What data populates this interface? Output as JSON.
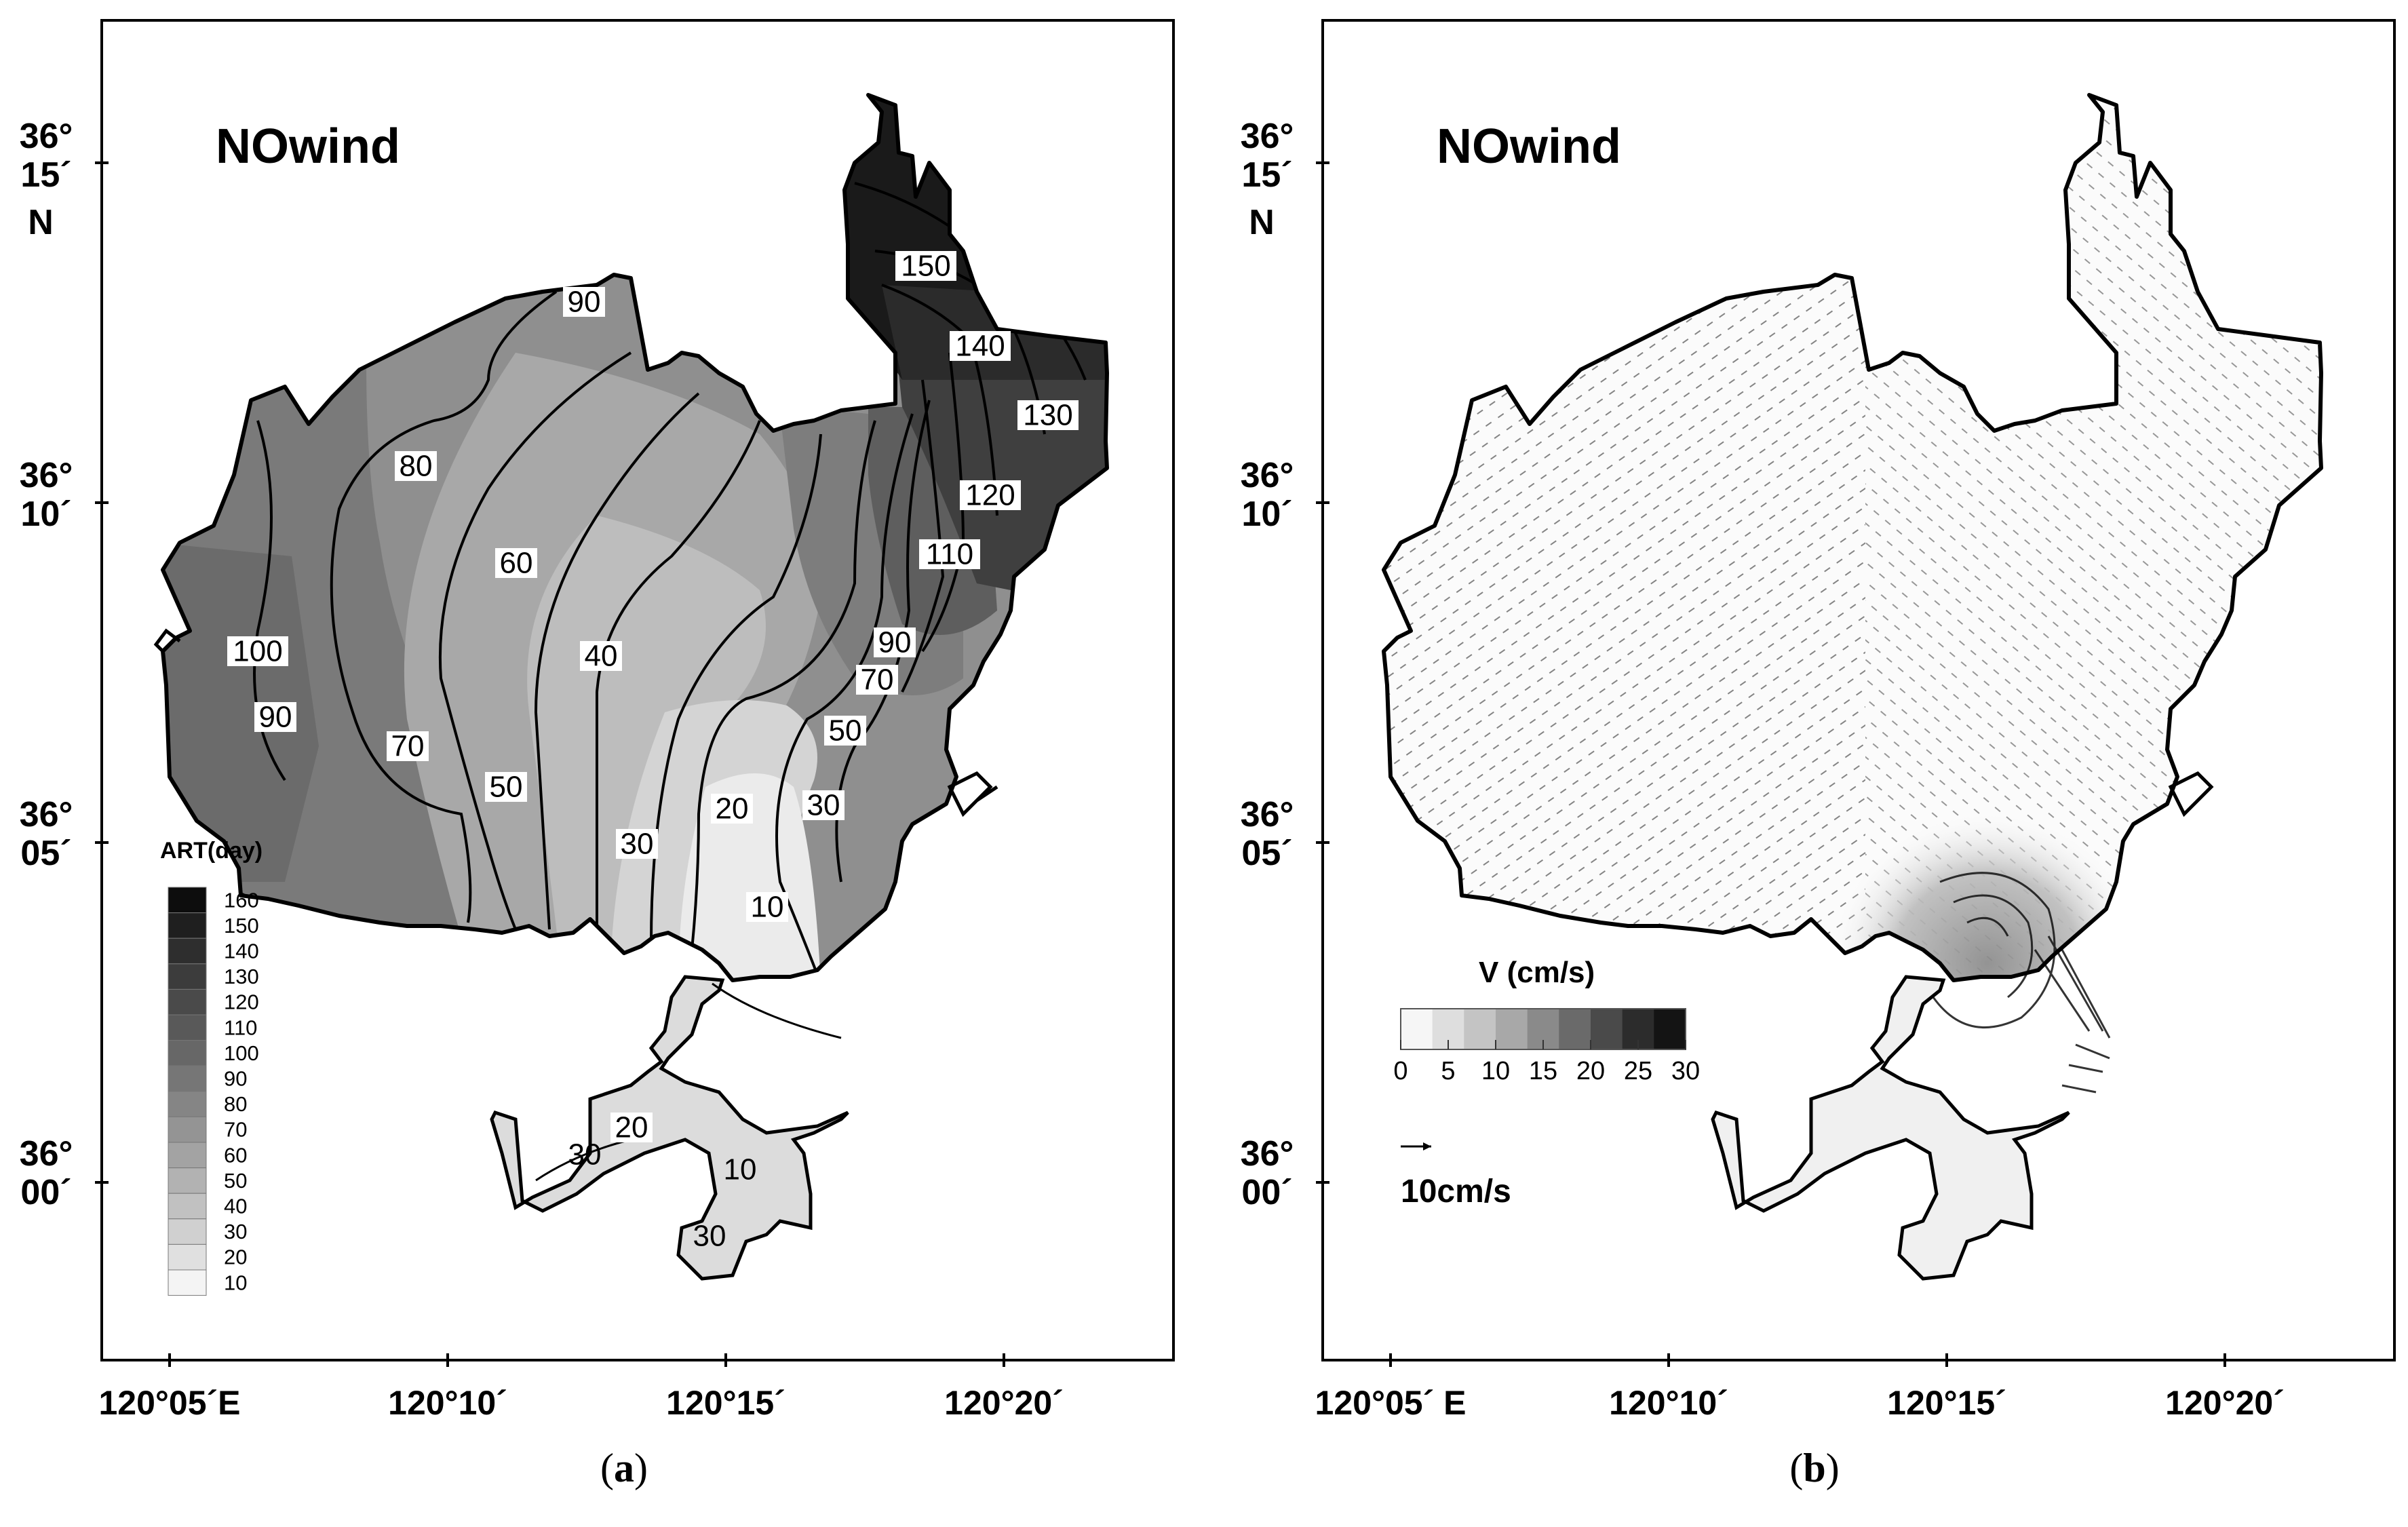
{
  "panels": [
    {
      "id": "a",
      "caption_letter": "a",
      "title": "NOwind",
      "y_ticks": [
        {
          "lat": "36°",
          "min": "15´",
          "hemi": "N"
        },
        {
          "lat": "36°",
          "min": "10´",
          "hemi": ""
        },
        {
          "lat": "36°",
          "min": "05´",
          "hemi": ""
        },
        {
          "lat": "36°",
          "min": "00´",
          "hemi": ""
        }
      ],
      "x_ticks": [
        "120°05´E",
        "120°10´",
        "120°15´",
        "120°20´"
      ],
      "legend": {
        "title": "ART(day)",
        "levels": [
          "160",
          "150",
          "140",
          "130",
          "120",
          "110",
          "100",
          "90",
          "80",
          "70",
          "60",
          "50",
          "40",
          "30",
          "20",
          "10"
        ],
        "colors": [
          "#0d0d0d",
          "#1f1f1f",
          "#2e2e2e",
          "#3c3c3c",
          "#4a4a4a",
          "#595959",
          "#676767",
          "#767676",
          "#858585",
          "#949494",
          "#a3a3a3",
          "#b2b2b2",
          "#c1c1c1",
          "#d0d0d0",
          "#e0e0e0",
          "#f4f4f4"
        ]
      },
      "contour_labels": [
        "150",
        "140",
        "130",
        "120",
        "110",
        "90",
        "100",
        "80",
        "60",
        "40",
        "90",
        "70",
        "90",
        "70",
        "50",
        "50",
        "20",
        "30",
        "30",
        "10",
        "20",
        "30",
        "10",
        "30"
      ]
    },
    {
      "id": "b",
      "caption_letter": "b",
      "title": "NOwind",
      "y_ticks": [
        {
          "lat": "36°",
          "min": "15´",
          "hemi": "N"
        },
        {
          "lat": "36°",
          "min": "10´",
          "hemi": ""
        },
        {
          "lat": "36°",
          "min": "05´",
          "hemi": ""
        },
        {
          "lat": "36°",
          "min": "00´",
          "hemi": ""
        }
      ],
      "x_ticks": [
        "120°05´ E",
        "120°10´",
        "120°15´",
        "120°20´"
      ],
      "legend": {
        "title": "V (cm/s)",
        "ticks": [
          "0",
          "5",
          "10",
          "15",
          "20",
          "25",
          "30"
        ],
        "colors": [
          "#f6f6f6",
          "#dedede",
          "#c4c4c4",
          "#a8a8a8",
          "#8a8a8a",
          "#6a6a6a",
          "#4a4a4a",
          "#2c2c2c",
          "#141414"
        ]
      },
      "scale_vector": "10cm/s"
    }
  ]
}
